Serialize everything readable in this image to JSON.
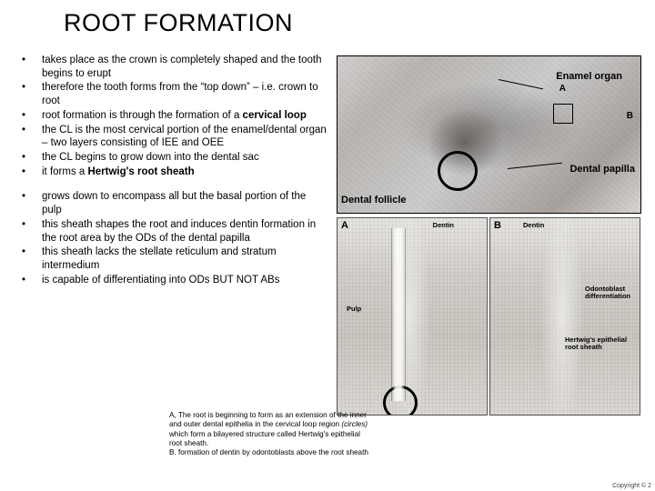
{
  "title": "ROOT FORMATION",
  "bullets_group1": [
    "takes place as the crown is completely shaped and the tooth begins to erupt",
    "therefore the tooth forms from the “top down” – i.e. crown to root",
    "root formation is through the formation of a cervical loop",
    "the CL is the most cervical portion of the enamel/dental organ – two layers consisting of IEE and OEE",
    "the CL begins to grow down into the dental sac",
    "it forms a Hertwig's root sheath"
  ],
  "bullets_group2": [
    "grows down to encompass all but the basal portion of the pulp",
    "this sheath shapes the root and induces dentin formation in the root area by the ODs of the dental papilla",
    "this sheath lacks the stellate reticulum and stratum intermedium",
    "is capable of differentiating into ODs BUT NOT ABs"
  ],
  "caption": "A, The root is beginning to form as an extension of the inner and outer dental epithelia in the cervical loop region (circles) which form a bilayered structure called Hertwig's epithelial root sheath.\nB. formation of dentin by odontoblasts above the root sheath",
  "top_image": {
    "labels": {
      "A": "A",
      "B": "B",
      "enamel_organ": "Enamel organ",
      "dental_papilla": "Dental papilla",
      "dental_follicle": "Dental follicle"
    }
  },
  "bottom_images": {
    "A": "A",
    "B": "B",
    "dentin": "Dentin",
    "pulp": "Pulp",
    "odontoblast": "Odontoblast differentiation",
    "hertwig": "Hertwig's epithelial root sheath"
  },
  "bold_terms": [
    "cervical loop",
    "Hertwig's root sheath"
  ],
  "copyright": "Copyright © 2"
}
